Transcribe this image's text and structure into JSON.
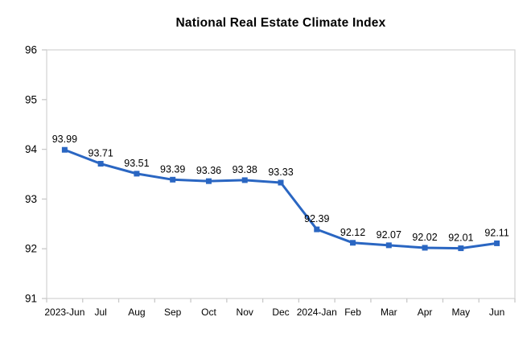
{
  "page": {
    "title": "National Real Estate Climate Index"
  },
  "chart_data": {
    "type": "line",
    "title": "National Real Estate Climate Index",
    "categories": [
      "2023-Jun",
      "Jul",
      "Aug",
      "Sep",
      "Oct",
      "Nov",
      "Dec",
      "2024-Jan",
      "Feb",
      "Mar",
      "Apr",
      "May",
      "Jun"
    ],
    "values": [
      93.99,
      93.71,
      93.51,
      93.39,
      93.36,
      93.38,
      93.33,
      92.39,
      92.12,
      92.07,
      92.02,
      92.01,
      92.11
    ],
    "data_labels": [
      "93.99",
      "93.71",
      "93.51",
      "93.39",
      "93.36",
      "93.38",
      "93.33",
      "92.39",
      "92.12",
      "92.07",
      "92.02",
      "92.01",
      "92.11"
    ],
    "xlabel": "",
    "ylabel": "",
    "ylim": [
      91,
      96
    ],
    "yticks": [
      91,
      92,
      93,
      94,
      95,
      96
    ],
    "grid": false,
    "legend": "none",
    "marker": "square",
    "series_color": "#2a66c2",
    "plot_border_color": "#d6d6d6",
    "tick_color": "#c9c9c9",
    "axis_text_color": "#000000",
    "label_text_color": "#000000"
  }
}
